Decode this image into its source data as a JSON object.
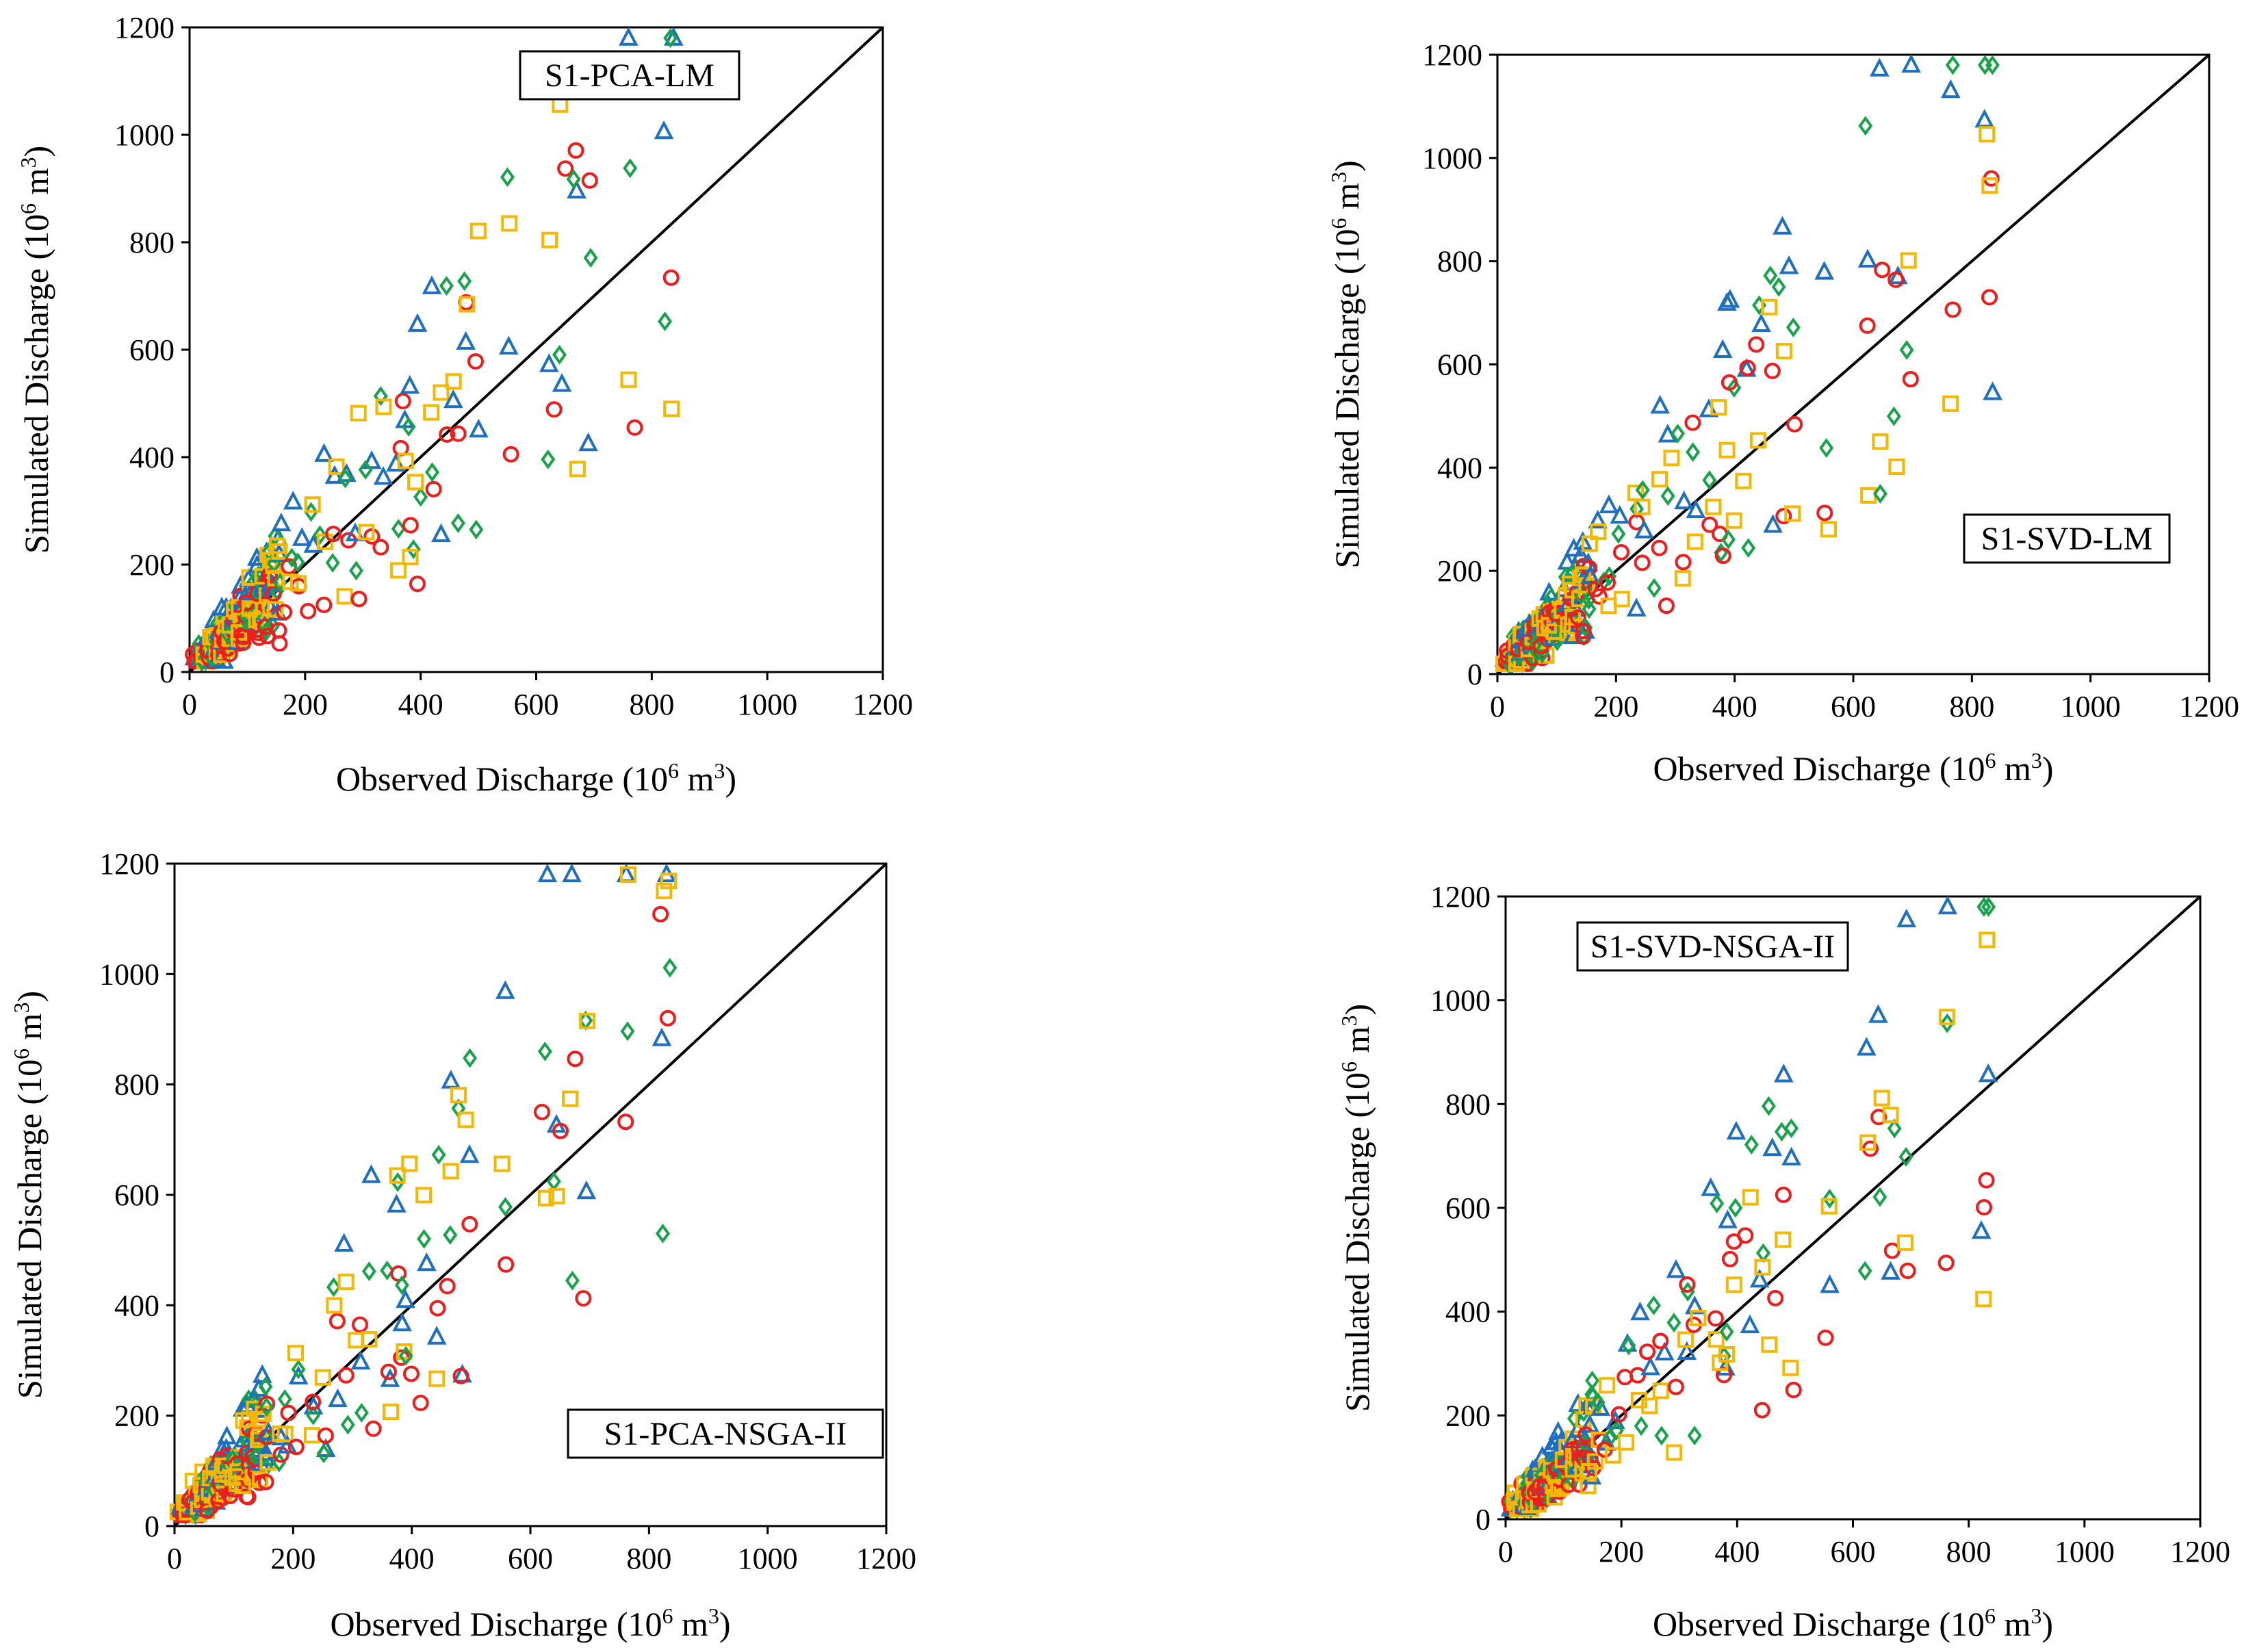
{
  "colors": {
    "triangle": "#1f6fc0",
    "diamond": "#16a34a",
    "circle": "#ee1c1c",
    "square": "#f5b800",
    "line": "#000000"
  },
  "chart_data": [
    {
      "type": "scatter",
      "title": "S1-PCA-LM",
      "xlabel": "Observed Discharge",
      "xlabel_unit": "(10",
      "ylabel": "Simulated Discharge",
      "ylabel_unit": "(10",
      "unit_exp": "6",
      "unit_m": " m",
      "unit_m_exp": "3",
      "unit_close": ")",
      "xlim": [
        0,
        1200
      ],
      "ylim": [
        0,
        1200
      ],
      "xticks": [
        "0",
        "200",
        "400",
        "600",
        "800",
        "1000",
        "1200"
      ],
      "yticks": [
        "0",
        "200",
        "400",
        "600",
        "800",
        "1000",
        "1200"
      ],
      "legend_position": "top-center",
      "reference_line": "1:1",
      "seed": 11
    },
    {
      "type": "scatter",
      "title": "S1-SVD-LM",
      "xlabel": "Observed Discharge",
      "xlabel_unit": "(10",
      "ylabel": "Simulated Discharge",
      "ylabel_unit": "(10",
      "unit_exp": "6",
      "unit_m": " m",
      "unit_m_exp": "3",
      "unit_close": ")",
      "xlim": [
        0,
        1200
      ],
      "ylim": [
        0,
        1200
      ],
      "xticks": [
        "0",
        "200",
        "400",
        "600",
        "800",
        "1000",
        "1200"
      ],
      "yticks": [
        "0",
        "200",
        "400",
        "600",
        "800",
        "1000",
        "1200"
      ],
      "legend_position": "middle-right",
      "reference_line": "1:1",
      "seed": 23
    },
    {
      "type": "scatter",
      "title": "S1-PCA-NSGA-II",
      "xlabel": "Observed Discharge",
      "xlabel_unit": "(10",
      "ylabel": "Simulated Discharge",
      "ylabel_unit": "(10",
      "unit_exp": "6",
      "unit_m": " m",
      "unit_m_exp": "3",
      "unit_close": ")",
      "xlim": [
        0,
        1200
      ],
      "ylim": [
        0,
        1200
      ],
      "xticks": [
        "0",
        "200",
        "400",
        "600",
        "800",
        "1000",
        "1200"
      ],
      "yticks": [
        "0",
        "200",
        "400",
        "600",
        "800",
        "1000",
        "1200"
      ],
      "legend_position": "bottom-right",
      "reference_line": "1:1",
      "seed": 37
    },
    {
      "type": "scatter",
      "title": "S1-SVD-NSGA-II",
      "xlabel": "Observed Discharge",
      "xlabel_unit": "(10",
      "ylabel": "Simulated Discharge",
      "ylabel_unit": "(10",
      "unit_exp": "6",
      "unit_m": " m",
      "unit_m_exp": "3",
      "unit_close": ")",
      "xlim": [
        0,
        1200
      ],
      "ylim": [
        0,
        1200
      ],
      "xticks": [
        "0",
        "200",
        "400",
        "600",
        "800",
        "1000",
        "1200"
      ],
      "yticks": [
        "0",
        "200",
        "400",
        "600",
        "800",
        "1000",
        "1200"
      ],
      "legend_position": "top-center",
      "reference_line": "1:1",
      "seed": 53
    }
  ],
  "observed": [
    20,
    25,
    30,
    35,
    40,
    45,
    50,
    55,
    60,
    65,
    70,
    75,
    80,
    90,
    100,
    110,
    120,
    130,
    140,
    150,
    160,
    175,
    190,
    210,
    230,
    250,
    270,
    290,
    310,
    330,
    360,
    375,
    385,
    395,
    420,
    440,
    460,
    480,
    495,
    555,
    625,
    645,
    670,
    695,
    765,
    825,
    835
  ],
  "series_markers": [
    "triangle",
    "diamond",
    "circle",
    "square"
  ]
}
